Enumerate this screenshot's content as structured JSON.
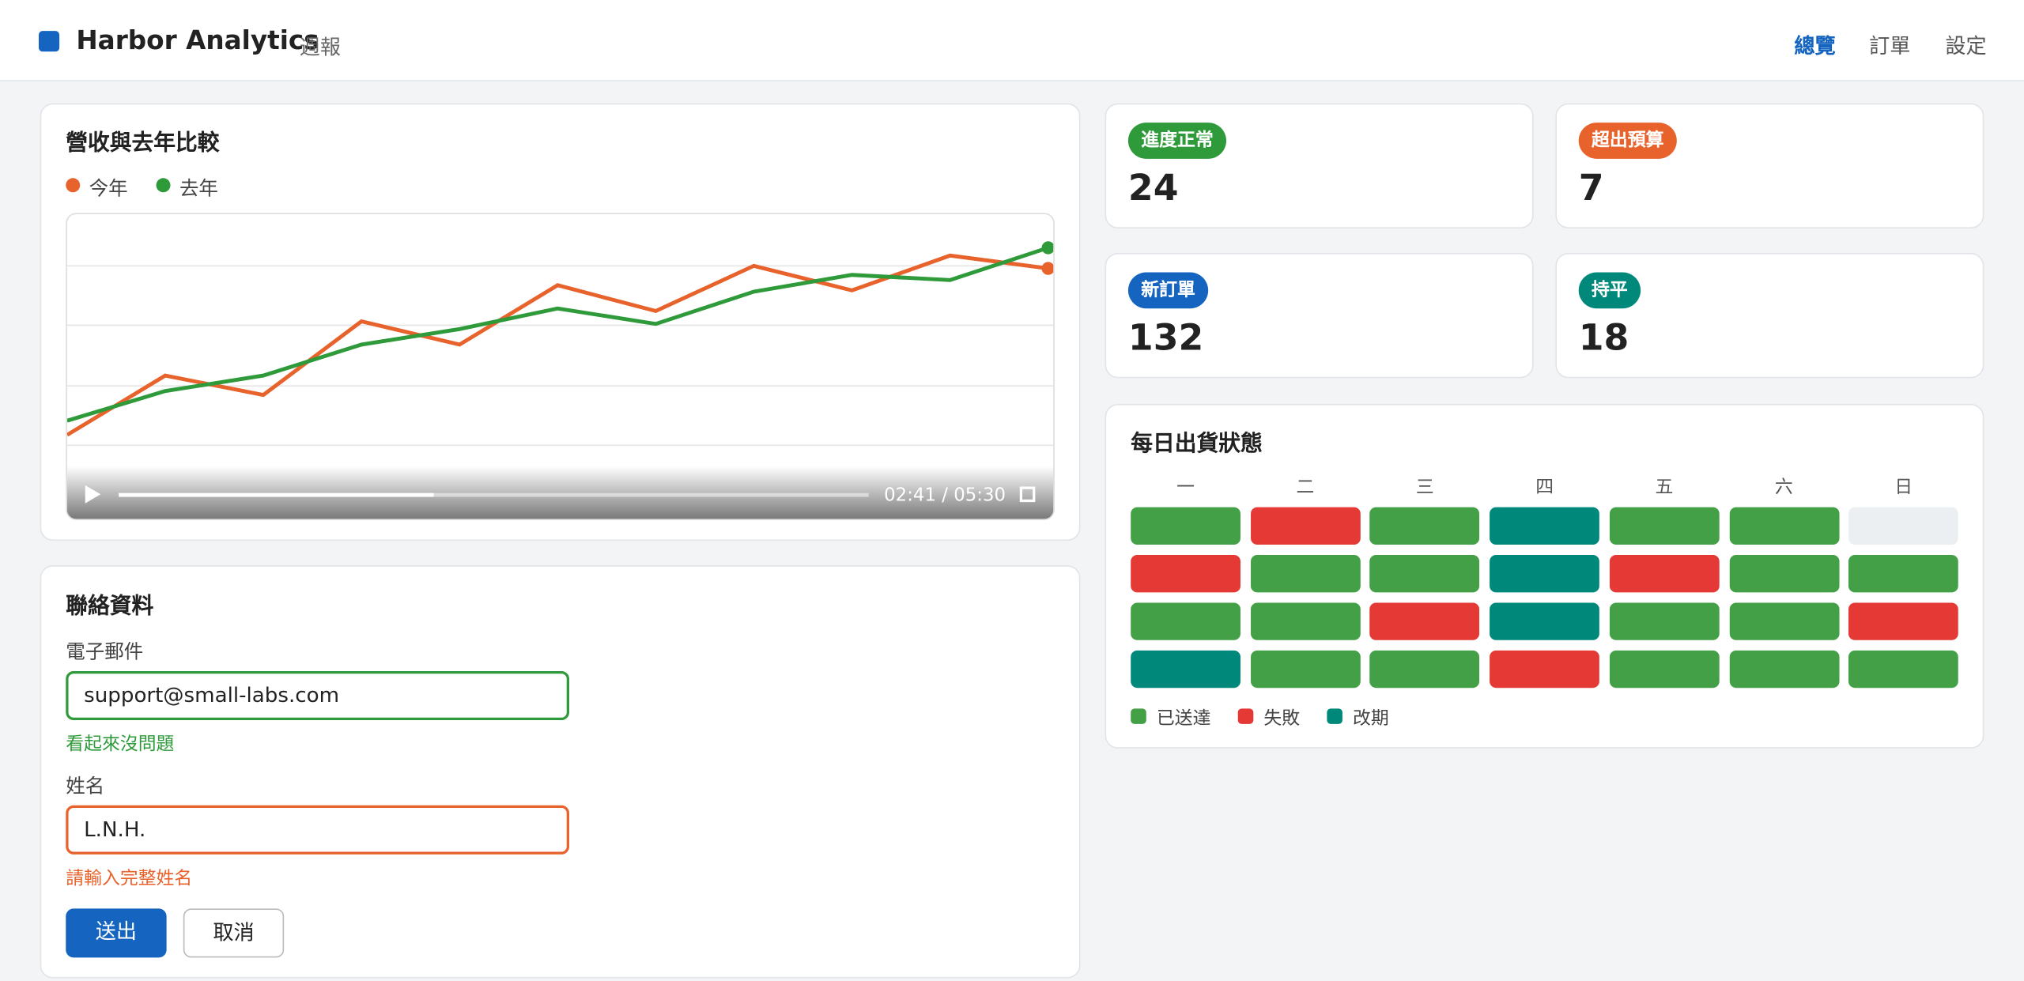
{
  "header": {
    "title": "Harbor Analytics",
    "subtitle": "週報",
    "nav": [
      {
        "label": "總覽",
        "active": true
      },
      {
        "label": "訂單",
        "active": false
      },
      {
        "label": "設定",
        "active": false
      }
    ]
  },
  "chart_data": {
    "type": "line",
    "title": "營收與去年比較",
    "categories": [
      null,
      null,
      null,
      null,
      null,
      null,
      null,
      null,
      null,
      null,
      null
    ],
    "ylim": [
      0,
      100
    ],
    "grid": true,
    "series": [
      {
        "name": "今年",
        "color": "#e8622c",
        "values": [
          22,
          45,
          37.5,
          66,
          57,
          80,
          70,
          87.5,
          78,
          91.5,
          86.5
        ]
      },
      {
        "name": "去年",
        "color": "#2e9a3a",
        "values": [
          27.5,
          39,
          45,
          57,
          63,
          71,
          65,
          77.5,
          84,
          82,
          94.5
        ]
      }
    ]
  },
  "video": {
    "time": "02:41 / 05:30",
    "progress": 42
  },
  "stats": [
    {
      "badge": "進度正常",
      "value": 24,
      "color": "#2e9a3a"
    },
    {
      "badge": "超出預算",
      "value": 7,
      "color": "#e8622c"
    },
    {
      "badge": "新訂單",
      "value": 132,
      "color": "#1565c0"
    },
    {
      "badge": "持平",
      "value": 18,
      "color": "#00897b"
    }
  ],
  "form": {
    "title": "聯絡資料",
    "fields": [
      {
        "label": "電子郵件",
        "value": "support@small-labs.com",
        "message": "看起來沒問題",
        "state": "valid"
      },
      {
        "label": "姓名",
        "value": "L.N.H.",
        "message": "請輸入完整姓名",
        "state": "error"
      }
    ],
    "submit": "送出",
    "cancel": "取消"
  },
  "shipping": {
    "title": "每日出貨狀態",
    "days": [
      "一",
      "二",
      "三",
      "四",
      "五",
      "六",
      "日"
    ],
    "legend": [
      {
        "label": "已送達",
        "color": "#43a047"
      },
      {
        "label": "失敗",
        "color": "#e53935"
      },
      {
        "label": "改期",
        "color": "#00897b"
      }
    ],
    "cells": [
      [
        0,
        1,
        0,
        2,
        0,
        0,
        null
      ],
      [
        1,
        0,
        0,
        2,
        1,
        0,
        0
      ],
      [
        0,
        0,
        1,
        2,
        0,
        0,
        1
      ],
      [
        2,
        0,
        0,
        1,
        0,
        0,
        0
      ]
    ]
  }
}
